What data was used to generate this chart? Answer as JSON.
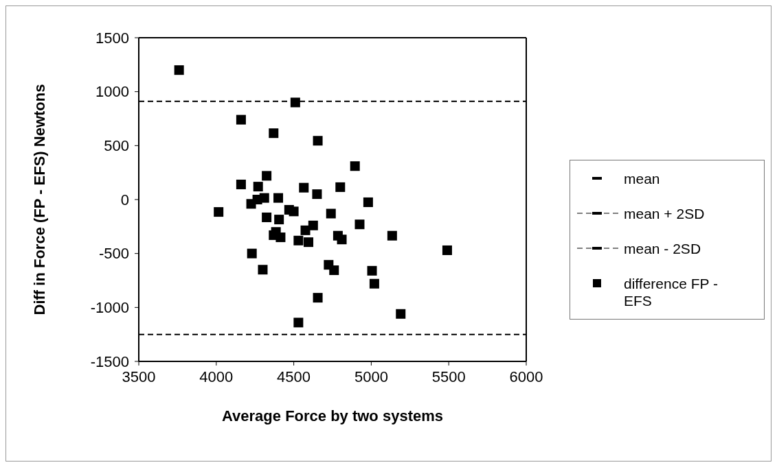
{
  "chart_data": {
    "type": "scatter",
    "xlabel": "Average Force by two systems",
    "ylabel": "Diff in Force (FP - EFS) Newtons",
    "xlim": [
      3500,
      6000
    ],
    "xticks": [
      3500,
      4000,
      4500,
      5000,
      5500,
      6000
    ],
    "ylim": [
      -1500,
      1500
    ],
    "yticks": [
      -1500,
      -1000,
      -500,
      0,
      500,
      1000,
      1500
    ],
    "grid": false,
    "legend": "right",
    "series": [
      {
        "name": "mean",
        "type": "line",
        "color": "#000000",
        "line_style": "solid"
      },
      {
        "name": "mean + 2SD",
        "type": "line",
        "color": "#000000",
        "line_style": "dashed",
        "x": [
          3500,
          6000
        ],
        "values": [
          910,
          910
        ]
      },
      {
        "name": "mean - 2SD",
        "type": "line",
        "color": "#000000",
        "line_style": "dashed",
        "x": [
          3500,
          6000
        ],
        "values": [
          -1250,
          -1250
        ]
      },
      {
        "name": "difference FP - EFS",
        "type": "scatter",
        "color": "#000000",
        "marker": "square",
        "x": [
          3760,
          4510,
          4160,
          4370,
          4655,
          4895,
          4325,
          4160,
          4270,
          4565,
          4650,
          4800,
          4225,
          4265,
          4310,
          4400,
          4470,
          4500,
          4015,
          4980,
          4740,
          4325,
          4405,
          4925,
          4625,
          5135,
          4385,
          4415,
          4530,
          4595,
          4575,
          4785,
          4810,
          4370,
          5490,
          4725,
          4760,
          5005,
          5020,
          4655,
          5190,
          4530,
          4230,
          4300
        ],
        "values": [
          1200,
          900,
          740,
          615,
          545,
          310,
          220,
          140,
          120,
          110,
          50,
          115,
          -40,
          0,
          15,
          15,
          -95,
          -110,
          -115,
          -25,
          -130,
          -165,
          -185,
          -230,
          -240,
          -335,
          -300,
          -350,
          -380,
          -395,
          -285,
          -335,
          -370,
          -330,
          -470,
          -605,
          -655,
          -660,
          -780,
          -910,
          -1060,
          -1140,
          -500,
          -650
        ]
      }
    ]
  }
}
